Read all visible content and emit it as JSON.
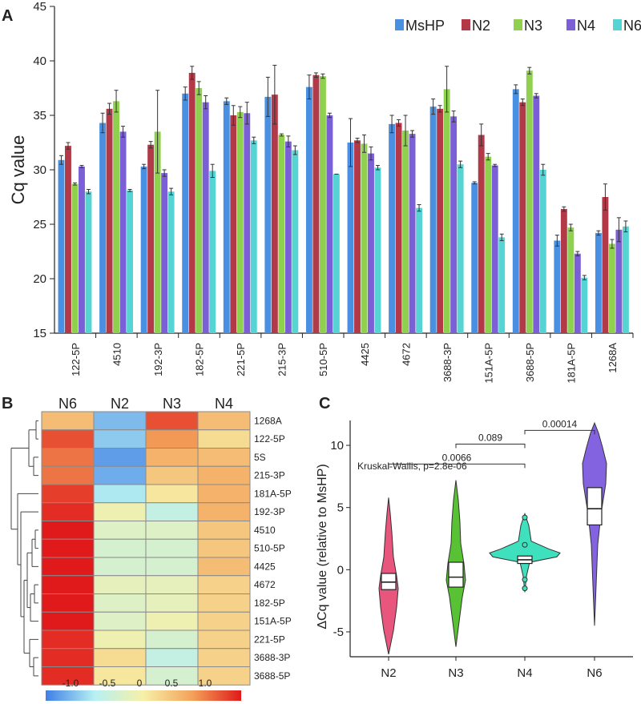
{
  "panels": {
    "a": "A",
    "b": "B",
    "c": "C"
  },
  "chart_data": [
    {
      "type": "bar",
      "panel": "A",
      "ylabel": "Cq value",
      "xlabel": "",
      "ylim": [
        15,
        45
      ],
      "yticks": [
        15,
        20,
        25,
        30,
        35,
        40,
        45
      ],
      "legend_position": "top-right",
      "categories": [
        "122-5P",
        "4510",
        "192-3P",
        "182-5P",
        "221-5P",
        "215-3P",
        "510-5P",
        "4425",
        "4672",
        "3688-3P",
        "151A-5P",
        "3688-5P",
        "181A-5P",
        "1268A"
      ],
      "series": [
        {
          "name": "MsHP",
          "color": "#4a90e2",
          "values": [
            30.9,
            34.3,
            30.3,
            37.0,
            36.3,
            36.7,
            37.6,
            32.5,
            34.2,
            35.8,
            28.8,
            37.4,
            23.5,
            24.2
          ],
          "errors": [
            0.4,
            0.9,
            0.2,
            0.6,
            0.3,
            1.8,
            1.1,
            2.2,
            0.8,
            0.7,
            0.1,
            0.4,
            0.5,
            0.2
          ]
        },
        {
          "name": "N2",
          "color": "#b23a48",
          "values": [
            32.2,
            35.6,
            32.3,
            38.9,
            35.0,
            36.9,
            38.7,
            32.7,
            34.3,
            35.6,
            33.2,
            36.2,
            26.4,
            27.5
          ],
          "errors": [
            0.3,
            0.5,
            0.3,
            0.6,
            0.9,
            2.7,
            0.2,
            0.2,
            0.3,
            0.3,
            1.0,
            0.3,
            0.2,
            1.2
          ]
        },
        {
          "name": "N3",
          "color": "#8fd14f",
          "values": [
            28.7,
            36.3,
            33.5,
            37.5,
            35.3,
            33.2,
            38.6,
            32.4,
            33.6,
            37.4,
            31.2,
            39.1,
            24.7,
            23.2
          ],
          "errors": [
            0.1,
            1.0,
            3.8,
            0.6,
            0.5,
            0.1,
            0.2,
            0.8,
            1.4,
            2.1,
            0.3,
            0.3,
            0.3,
            0.4
          ]
        },
        {
          "name": "N4",
          "color": "#7b5fd6",
          "values": [
            30.3,
            33.5,
            29.7,
            36.2,
            35.2,
            32.6,
            35.0,
            31.5,
            33.3,
            34.9,
            30.4,
            36.8,
            22.3,
            24.5
          ],
          "errors": [
            0.1,
            0.5,
            0.3,
            0.6,
            1.0,
            0.5,
            0.2,
            0.6,
            0.3,
            0.5,
            0.1,
            0.2,
            0.2,
            1.1
          ]
        },
        {
          "name": "N6",
          "color": "#56d4d4",
          "values": [
            28.0,
            28.1,
            28.0,
            29.9,
            32.7,
            31.8,
            29.6,
            30.2,
            26.5,
            30.5,
            23.8,
            30.0,
            20.1,
            24.8
          ],
          "errors": [
            0.2,
            0.1,
            0.3,
            0.6,
            0.3,
            0.4,
            0.0,
            0.2,
            0.3,
            0.3,
            0.3,
            0.5,
            0.2,
            0.5
          ]
        }
      ]
    },
    {
      "type": "heatmap",
      "panel": "B",
      "columns": [
        "N6",
        "N2",
        "N3",
        "N4"
      ],
      "rows": [
        "1268A",
        "122-5P",
        "5S",
        "215-3P",
        "181A-5P",
        "192-3P",
        "4510",
        "510-5P",
        "4425",
        "4672",
        "182-5P",
        "151A-5P",
        "221-5P",
        "3688-3P",
        "3688-5P"
      ],
      "values": [
        [
          0.5,
          -1.1,
          1.2,
          0.5
        ],
        [
          1.2,
          -1.0,
          0.8,
          0.2
        ],
        [
          1.0,
          -1.3,
          0.6,
          0.5
        ],
        [
          1.0,
          -1.2,
          0.4,
          0.6
        ],
        [
          1.3,
          -0.8,
          0.1,
          0.6
        ],
        [
          1.4,
          -0.1,
          -0.6,
          0.6
        ],
        [
          1.5,
          -0.3,
          -0.3,
          0.4
        ],
        [
          1.5,
          -0.4,
          -0.4,
          0.4
        ],
        [
          1.5,
          -0.4,
          -0.4,
          0.5
        ],
        [
          1.5,
          -0.2,
          -0.2,
          0.3
        ],
        [
          1.5,
          -0.3,
          -0.2,
          0.3
        ],
        [
          1.5,
          -0.3,
          -0.1,
          0.3
        ],
        [
          1.4,
          -0.1,
          -0.4,
          0.3
        ],
        [
          1.4,
          0.2,
          -0.6,
          0.3
        ],
        [
          1.4,
          0.1,
          -0.4,
          0.3
        ]
      ],
      "color_scale": {
        "ticks": [
          "-1.0",
          "-0.5",
          "0",
          "0.5",
          "1.0"
        ],
        "min": -1.5,
        "max": 1.5,
        "stops": [
          "#3f7fe6",
          "#b6f0f2",
          "#f7f0a8",
          "#f3a25a",
          "#e01a1a"
        ]
      }
    },
    {
      "type": "violin",
      "panel": "C",
      "ylabel": "ΔCq value (relative to MsHP)",
      "categories": [
        "N2",
        "N3",
        "N4",
        "N6"
      ],
      "colors": [
        "#e8557d",
        "#58c234",
        "#3ee0bd",
        "#8463e0"
      ],
      "ylim": [
        -7,
        12
      ],
      "yticks": [
        -5,
        0,
        5,
        10
      ],
      "medians": [
        -1.0,
        -0.6,
        0.8,
        4.9
      ],
      "q1": [
        -1.6,
        -1.4,
        0.5,
        3.6
      ],
      "q3": [
        -0.3,
        0.6,
        1.1,
        6.6
      ],
      "min": [
        -6.8,
        -6.2,
        -1.8,
        -4.5
      ],
      "max": [
        5.8,
        7.2,
        4.5,
        11.8
      ],
      "annotation": "Kruskal-Wallis, p=2.8e-06",
      "comparisons": [
        {
          "from": "N3",
          "to": "N4",
          "label": "0.089",
          "y": 10.1
        },
        {
          "from": "N2",
          "to": "N4",
          "label": "0.0066",
          "y": 8.5
        },
        {
          "from": "N4",
          "to": "N6",
          "label": "0.00014",
          "y": 11.2
        }
      ]
    }
  ]
}
